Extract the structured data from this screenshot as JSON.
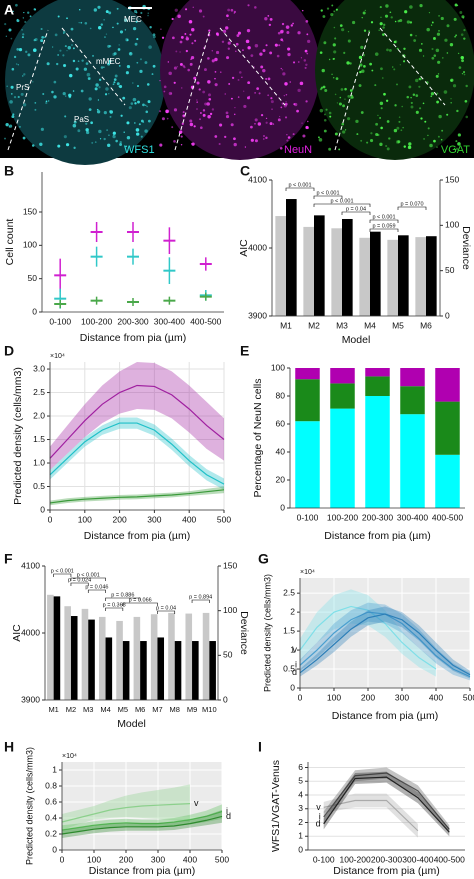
{
  "figure_a": {
    "label": "A",
    "panels": [
      {
        "name": "WFS1",
        "annotations": [
          "MEC",
          "mMEC",
          "PrS",
          "PaS"
        ]
      },
      {
        "name": "NeuN"
      },
      {
        "name": "VGAT"
      }
    ]
  },
  "chart_data": [
    {
      "panel": "B",
      "type": "errorbar",
      "xlabel": "Distance from pia (µm)",
      "ylabel": "Cell count",
      "categories": [
        "0-100",
        "100-200",
        "200-300",
        "300-400",
        "400-500"
      ],
      "ylim": [
        0,
        210
      ],
      "yticks": [
        0,
        50,
        100,
        150
      ],
      "series": [
        {
          "color": "#d020d0",
          "values": [
            55,
            120,
            120,
            107,
            72
          ],
          "errors": [
            25,
            15,
            15,
            20,
            10
          ]
        },
        {
          "color": "#30c8c8",
          "values": [
            20,
            83,
            83,
            62,
            25
          ],
          "errors": [
            15,
            15,
            12,
            20,
            8
          ]
        },
        {
          "color": "#4aa84a",
          "values": [
            12,
            17,
            15,
            17,
            23
          ],
          "errors": [
            6,
            6,
            6,
            6,
            6
          ]
        }
      ]
    },
    {
      "panel": "C",
      "type": "bar",
      "xlabel": "Model",
      "ylabel": "AIC",
      "y2label": "Deviance",
      "categories": [
        "M1",
        "M2",
        "M3",
        "M4",
        "M5",
        "M6"
      ],
      "ylim": [
        3900,
        4100
      ],
      "yticks": [
        3900,
        4000,
        4100
      ],
      "y2lim": [
        0,
        150
      ],
      "y2ticks": [
        0,
        50,
        100,
        150
      ],
      "series": [
        {
          "color": "#c8c8c8",
          "values": [
            4047,
            4031,
            4029,
            4015,
            4012,
            4016
          ]
        },
        {
          "color": "#000000",
          "axis": "y2",
          "values": [
            129,
            111,
            107,
            93,
            89,
            88
          ]
        }
      ],
      "annotations": [
        "p < 0.001",
        "p < 0.001",
        "p < 0.001",
        "p = 0.04",
        "p < 0.001",
        "p = 0.059",
        "p = 0.070"
      ]
    },
    {
      "panel": "D",
      "type": "line",
      "xlabel": "Distance from pia (µm)",
      "ylabel": "Predicted density (cells/mm3)",
      "y_multiplier": "×10⁴",
      "grid": true,
      "x": [
        0,
        50,
        100,
        150,
        200,
        250,
        300,
        350,
        400,
        450,
        500
      ],
      "xlim": [
        0,
        500
      ],
      "xticks": [
        0,
        100,
        200,
        300,
        400,
        500
      ],
      "ylim": [
        0,
        31500
      ],
      "yticks": [
        0,
        {
          "value": 5000,
          "label": "0.5"
        },
        {
          "value": 10000,
          "label": "1.0"
        },
        {
          "value": 15000,
          "label": "1.5"
        },
        {
          "value": 20000,
          "label": "2.0"
        },
        {
          "value": 25000,
          "label": "2.5"
        },
        {
          "value": 30000,
          "label": "3.0"
        }
      ],
      "series": [
        {
          "color": "#a020a0",
          "values": [
            11000,
            15000,
            19000,
            22500,
            25000,
            26500,
            26300,
            24500,
            21500,
            18000,
            15000
          ],
          "lower": [
            8500,
            12000,
            15500,
            18500,
            20500,
            21500,
            21300,
            19500,
            16500,
            13000,
            10500
          ],
          "upper": [
            13500,
            18000,
            22500,
            26500,
            29500,
            31500,
            31300,
            29500,
            26500,
            23000,
            19500
          ]
        },
        {
          "color": "#20c0c8",
          "values": [
            7500,
            11000,
            14500,
            17000,
            18500,
            18500,
            17000,
            14000,
            10500,
            7500,
            5500
          ],
          "lower": [
            6500,
            10000,
            13500,
            16000,
            17300,
            17300,
            15800,
            12800,
            9300,
            6300,
            4300
          ],
          "upper": [
            8500,
            12000,
            15500,
            18000,
            19700,
            19700,
            18200,
            15200,
            11700,
            8700,
            6700
          ]
        },
        {
          "color": "#3a9a3a",
          "values": [
            1500,
            2000,
            2300,
            2500,
            2700,
            2800,
            3000,
            3200,
            3500,
            3900,
            4300
          ],
          "lower": [
            1000,
            1500,
            1800,
            2000,
            2200,
            2300,
            2500,
            2700,
            3000,
            3300,
            3600
          ],
          "upper": [
            2000,
            2500,
            2800,
            3000,
            3200,
            3300,
            3500,
            3700,
            4000,
            4500,
            5000
          ]
        }
      ]
    },
    {
      "panel": "E",
      "type": "stacked_bar",
      "xlabel": "Distance from pia (µm)",
      "ylabel": "Percentage of NeuN cells",
      "categories": [
        "0-100",
        "100-200",
        "200-300",
        "300-400",
        "400-500"
      ],
      "ylim": [
        0,
        100
      ],
      "yticks": [
        0,
        20,
        40,
        60,
        80,
        100
      ],
      "series": [
        {
          "color": "#00ffff",
          "values": [
            62,
            71,
            80,
            67,
            38
          ]
        },
        {
          "color": "#1a8a1a",
          "values": [
            30,
            18,
            14,
            20,
            38
          ]
        },
        {
          "color": "#b000b0",
          "values": [
            8,
            11,
            6,
            13,
            24
          ]
        }
      ]
    },
    {
      "panel": "F",
      "type": "bar",
      "xlabel": "Model",
      "ylabel": "AIC",
      "y2label": "Deviance",
      "categories": [
        "M1",
        "M2",
        "M3",
        "M4",
        "M5",
        "M6",
        "M7",
        "M8",
        "M9",
        "M10"
      ],
      "ylim": [
        3900,
        4100
      ],
      "yticks": [
        3900,
        4000,
        4100
      ],
      "y2lim": [
        0,
        150
      ],
      "y2ticks": [
        0,
        50,
        100,
        150
      ],
      "series": [
        {
          "color": "#c8c8c8",
          "values": [
            4057,
            4040,
            4036,
            4024,
            4018,
            4024,
            4028,
            4030,
            4029,
            4030
          ]
        },
        {
          "color": "#000000",
          "axis": "y2",
          "values": [
            116,
            94,
            90,
            70,
            66,
            66,
            70,
            66,
            66,
            66
          ]
        }
      ],
      "annotations": [
        "p < 0.001",
        "p = 0.024",
        "p < 0.001",
        "p = 0.046",
        "p = 0.368",
        "p = 0.886",
        "p = 0.066",
        "p = 0.04",
        "p = 0.894"
      ]
    },
    {
      "panel": "G",
      "type": "line",
      "xlabel": "Distance from pia (µm)",
      "ylabel": "Predicted density (cells/mm3)",
      "y_multiplier": "×10⁴",
      "grid": true,
      "background": "#ebebeb",
      "x": [
        0,
        50,
        100,
        150,
        200,
        250,
        300,
        350,
        400,
        450,
        500
      ],
      "xlim": [
        0,
        500
      ],
      "xticks": [
        0,
        100,
        200,
        300,
        400,
        500
      ],
      "ylim": [
        0,
        29000
      ],
      "yticks": [
        0,
        {
          "value": 5000,
          "label": "0.5"
        },
        {
          "value": 10000,
          "label": "1"
        },
        {
          "value": 15000,
          "label": "1.5"
        },
        {
          "value": 20000,
          "label": "2"
        },
        {
          "value": 25000,
          "label": "2.5"
        }
      ],
      "series": [
        {
          "name": "v",
          "color": "#7fdfe8",
          "values": [
            10000,
            16000,
            20000,
            21500,
            20500,
            17000,
            12000,
            8000,
            5000,
            null,
            null
          ],
          "lower": [
            7000,
            12000,
            15500,
            17000,
            16500,
            13500,
            9000,
            5500,
            3000,
            null,
            null
          ],
          "upper": [
            13000,
            20000,
            24500,
            26000,
            24500,
            20500,
            15000,
            10500,
            7000,
            null,
            null
          ]
        },
        {
          "name": "i",
          "color": "#4a9fd0",
          "values": [
            6000,
            10000,
            14500,
            18000,
            20000,
            19500,
            17000,
            13000,
            8500,
            5000,
            3000
          ],
          "lower": [
            4500,
            8000,
            12000,
            15500,
            17500,
            17000,
            14500,
            10500,
            6500,
            3500,
            2000
          ],
          "upper": [
            7500,
            12000,
            17000,
            20500,
            22500,
            22000,
            19500,
            15500,
            10500,
            6500,
            4000
          ]
        },
        {
          "name": "d",
          "color": "#2c7fb8",
          "values": [
            4000,
            7500,
            11500,
            15500,
            18500,
            19500,
            18000,
            14500,
            10000,
            6000,
            3500
          ],
          "lower": [
            3000,
            6000,
            9500,
            13500,
            16500,
            17500,
            16000,
            12500,
            8000,
            4500,
            2500
          ],
          "upper": [
            5000,
            9000,
            13500,
            17500,
            20500,
            21500,
            20000,
            16500,
            12000,
            7500,
            4500
          ]
        }
      ]
    },
    {
      "panel": "H",
      "type": "line",
      "xlabel": "Distance from pia (µm)",
      "ylabel": "Predicted density (cells/mm3)",
      "y_multiplier": "×10⁴",
      "grid": true,
      "background": "#ebebeb",
      "x": [
        0,
        50,
        100,
        150,
        200,
        250,
        300,
        350,
        400,
        450,
        500
      ],
      "xlim": [
        0,
        500
      ],
      "xticks": [
        0,
        100,
        200,
        300,
        400,
        500
      ],
      "ylim": [
        0,
        11000
      ],
      "yticks": [
        0,
        {
          "value": 2000,
          "label": "0.2"
        },
        {
          "value": 4000,
          "label": "0.4"
        },
        {
          "value": 6000,
          "label": "0.6"
        },
        {
          "value": 8000,
          "label": "0.8"
        },
        {
          "value": 10000,
          "label": "1"
        }
      ],
      "series": [
        {
          "name": "v",
          "color": "#8cd08c",
          "values": [
            3500,
            4000,
            4500,
            5000,
            5300,
            5500,
            5600,
            5700,
            5800,
            null,
            null
          ],
          "lower": [
            2500,
            3200,
            3800,
            4000,
            4100,
            4000,
            3900,
            3700,
            3500,
            null,
            null
          ],
          "upper": [
            4500,
            5000,
            5500,
            6200,
            6800,
            7200,
            7500,
            7800,
            8200,
            null,
            null
          ]
        },
        {
          "name": "i",
          "color": "#5cbf5c",
          "values": [
            2500,
            2800,
            3100,
            3300,
            3400,
            3300,
            3300,
            3500,
            3800,
            4200,
            4800
          ],
          "lower": [
            1900,
            2300,
            2600,
            2800,
            2900,
            2800,
            2800,
            3000,
            3200,
            3500,
            3900
          ],
          "upper": [
            3100,
            3300,
            3600,
            3800,
            3900,
            3800,
            3800,
            4000,
            4400,
            4900,
            5700
          ]
        },
        {
          "name": "d",
          "color": "#2e8a2e",
          "values": [
            2000,
            2300,
            2600,
            2800,
            2900,
            2900,
            2900,
            3000,
            3300,
            3700,
            4200
          ],
          "lower": [
            1500,
            1800,
            2100,
            2300,
            2400,
            2400,
            2400,
            2500,
            2800,
            3100,
            3400
          ],
          "upper": [
            2500,
            2800,
            3100,
            3300,
            3400,
            3400,
            3400,
            3500,
            3800,
            4300,
            5000
          ]
        }
      ]
    },
    {
      "panel": "I",
      "type": "line",
      "xlabel": "Distance from pia (µm)",
      "ylabel": "WFS1/VGAT-Venus",
      "grid": true,
      "categories": [
        "0-100",
        "100-200",
        "200-300",
        "300-400",
        "400-500"
      ],
      "ylim": [
        0,
        6.4
      ],
      "yticks": [
        0,
        1,
        2,
        3,
        4,
        5,
        6
      ],
      "series": [
        {
          "name": "v",
          "color": "#aaaaaa",
          "values": [
            3.1,
            3.6,
            3.6,
            1.4,
            null
          ],
          "lower": [
            2.7,
            3.1,
            3.1,
            0.9,
            null
          ],
          "upper": [
            3.5,
            4.1,
            4.1,
            1.9,
            null
          ]
        },
        {
          "name": "i",
          "color": "#555555",
          "values": [
            2.4,
            5.4,
            5.6,
            4.3,
            1.5
          ],
          "lower": [
            2.0,
            5.0,
            5.2,
            3.9,
            1.2
          ],
          "upper": [
            2.8,
            5.8,
            6.0,
            4.7,
            1.8
          ]
        },
        {
          "name": "d",
          "color": "#222222",
          "values": [
            1.9,
            5.2,
            5.3,
            3.8,
            1.3
          ],
          "lower": [
            1.5,
            4.8,
            4.9,
            3.4,
            1.0
          ],
          "upper": [
            2.3,
            5.6,
            5.7,
            4.2,
            1.6
          ]
        }
      ]
    }
  ]
}
